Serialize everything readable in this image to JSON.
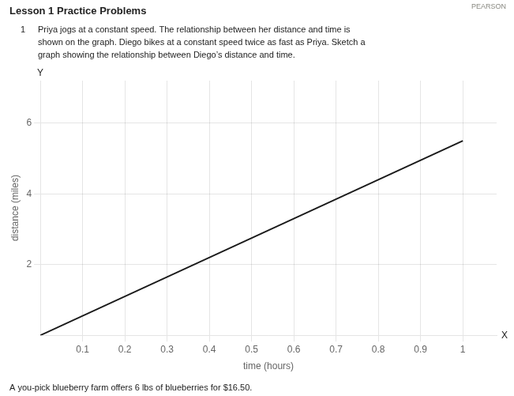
{
  "chart_data": {
    "type": "line",
    "title": "Lesson 1 Practice Problems",
    "subtitle": [
      "Priya jogs at a constant speed. The relationship between her distance and time is",
      "shown on the graph. Diego bikes at a constant speed twice as fast as Priya. Sketch a",
      "graph showing the relationship between Diego’s distance and time."
    ],
    "annotations": [
      "1",
      "PEARSON",
      "A you-pick blueberry farm offers 6 lbs of blueberries for $16.50.",
      "Y",
      "X"
    ],
    "xlabel": "time (hours)",
    "ylabel": "distance (miles)",
    "x": [
      0,
      1.0
    ],
    "values": [
      0,
      5.5
    ],
    "color": "#1a1a1a",
    "xlim": [
      0,
      1.08
    ],
    "ylim": [
      0,
      7.2
    ],
    "xticks": [
      0.1,
      0.2,
      0.3,
      0.4,
      0.5,
      0.6,
      0.7,
      0.8,
      0.9,
      1
    ],
    "yticks": [
      2,
      4,
      6
    ],
    "grid": true
  }
}
